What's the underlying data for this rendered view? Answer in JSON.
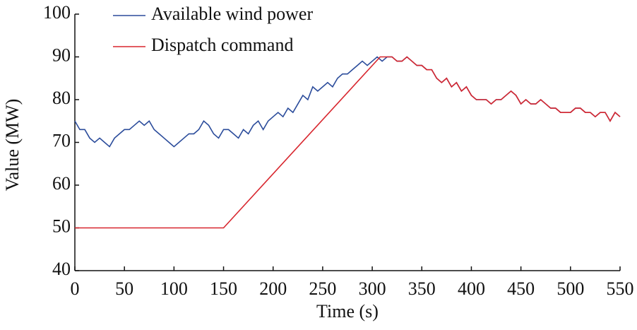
{
  "chart_data": {
    "type": "line",
    "xlabel": "Time (s)",
    "ylabel": "Value (MW)",
    "xlim": [
      0,
      550
    ],
    "xticks": [
      0,
      50,
      100,
      150,
      200,
      250,
      300,
      350,
      400,
      450,
      500,
      550
    ],
    "ylim": [
      40,
      100
    ],
    "yticks": [
      40,
      50,
      60,
      70,
      80,
      90,
      100
    ],
    "grid": false,
    "legend": "upper left",
    "series": [
      {
        "name": "Available wind power",
        "color": "#2b4c9b",
        "x": [
          0,
          5,
          10,
          15,
          20,
          25,
          30,
          35,
          40,
          45,
          50,
          55,
          60,
          65,
          70,
          75,
          80,
          85,
          90,
          95,
          100,
          105,
          110,
          115,
          120,
          125,
          130,
          135,
          140,
          145,
          150,
          155,
          160,
          165,
          170,
          175,
          180,
          185,
          190,
          195,
          200,
          205,
          210,
          215,
          220,
          225,
          230,
          235,
          240,
          245,
          250,
          255,
          260,
          265,
          270,
          275,
          280,
          285,
          290,
          295,
          300,
          305,
          310,
          315,
          320,
          325,
          330,
          335,
          340,
          345,
          350,
          355,
          360,
          365,
          370,
          375,
          380,
          385,
          390,
          395,
          400,
          405,
          410,
          415,
          420,
          425,
          430,
          435,
          440,
          445,
          450,
          455,
          460,
          465,
          470,
          475,
          480,
          485,
          490,
          495,
          500,
          505,
          510,
          515,
          520,
          525,
          530,
          535,
          540,
          545,
          550
        ],
        "values": [
          75,
          73,
          73,
          71,
          70,
          71,
          70,
          69,
          71,
          72,
          73,
          73,
          74,
          75,
          74,
          75,
          73,
          72,
          71,
          70,
          69,
          70,
          71,
          72,
          72,
          73,
          75,
          74,
          72,
          71,
          73,
          73,
          72,
          71,
          73,
          72,
          74,
          75,
          73,
          75,
          76,
          77,
          76,
          78,
          77,
          79,
          81,
          80,
          83,
          82,
          83,
          84,
          83,
          85,
          86,
          86,
          87,
          88,
          89,
          88,
          89,
          90,
          89,
          90,
          90,
          89,
          89,
          90,
          89,
          88,
          88,
          87,
          87,
          85,
          84,
          85,
          83,
          84,
          82,
          83,
          81,
          80,
          80,
          80,
          79,
          80,
          80,
          81,
          82,
          81,
          79,
          80,
          79,
          79,
          80,
          79,
          78,
          78,
          77,
          77,
          77,
          78,
          78,
          77,
          77,
          76,
          77,
          77,
          75,
          77,
          76
        ]
      },
      {
        "name": "Dispatch command",
        "color": "#d8262e",
        "x": [
          0,
          150,
          308,
          315,
          320,
          325,
          330,
          335,
          340,
          345,
          350,
          355,
          360,
          365,
          370,
          375,
          380,
          385,
          390,
          395,
          400,
          405,
          410,
          415,
          420,
          425,
          430,
          435,
          440,
          445,
          450,
          455,
          460,
          465,
          470,
          475,
          480,
          485,
          490,
          495,
          500,
          505,
          510,
          515,
          520,
          525,
          530,
          535,
          540,
          545,
          550
        ],
        "values": [
          50,
          50,
          90,
          90,
          90,
          89,
          89,
          90,
          89,
          88,
          88,
          87,
          87,
          85,
          84,
          85,
          83,
          84,
          82,
          83,
          81,
          80,
          80,
          80,
          79,
          80,
          80,
          81,
          82,
          81,
          79,
          80,
          79,
          79,
          80,
          79,
          78,
          78,
          77,
          77,
          77,
          78,
          78,
          77,
          77,
          76,
          77,
          77,
          75,
          77,
          76
        ]
      }
    ]
  }
}
